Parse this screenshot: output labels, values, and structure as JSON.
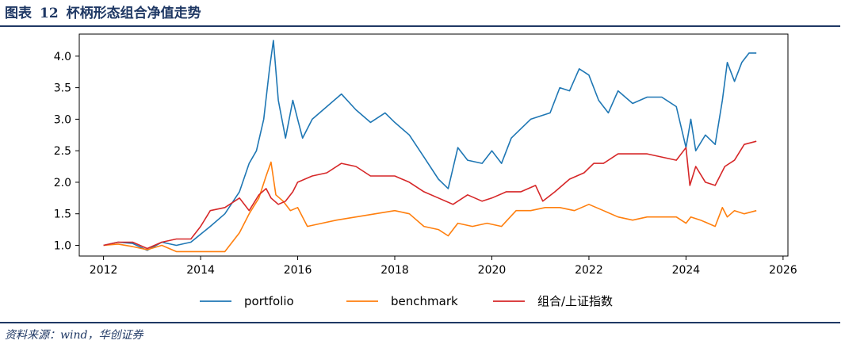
{
  "header": {
    "fig_label": "图表",
    "fig_number": "12",
    "fig_title": "杯柄形态组合净值走势"
  },
  "source": "资料来源：wind，华创证券",
  "chart_data": {
    "type": "line",
    "title": "",
    "xlabel": "",
    "ylabel": "",
    "xlim": [
      2011.5,
      2026.1
    ],
    "ylim": [
      0.83,
      4.35
    ],
    "xticks": [
      "2012",
      "2014",
      "2016",
      "2018",
      "2020",
      "2022",
      "2024",
      "2026"
    ],
    "yticks": [
      "1.0",
      "1.5",
      "2.0",
      "2.5",
      "3.0",
      "3.5",
      "4.0"
    ],
    "legend_position": "bottom",
    "series": [
      {
        "name": "portfolio",
        "color": "#1f77b4",
        "x": [
          2012.0,
          2012.3,
          2012.6,
          2012.9,
          2013.2,
          2013.5,
          2013.8,
          2014.2,
          2014.5,
          2014.8,
          2015.0,
          2015.15,
          2015.3,
          2015.42,
          2015.5,
          2015.6,
          2015.75,
          2015.9,
          2016.0,
          2016.1,
          2016.3,
          2016.6,
          2016.9,
          2017.2,
          2017.5,
          2017.8,
          2018.0,
          2018.3,
          2018.6,
          2018.9,
          2019.1,
          2019.3,
          2019.5,
          2019.8,
          2020.0,
          2020.2,
          2020.4,
          2020.6,
          2020.8,
          2021.0,
          2021.2,
          2021.4,
          2021.6,
          2021.8,
          2022.0,
          2022.2,
          2022.4,
          2022.6,
          2022.9,
          2023.2,
          2023.5,
          2023.8,
          2024.0,
          2024.1,
          2024.2,
          2024.4,
          2024.6,
          2024.75,
          2024.85,
          2025.0,
          2025.15,
          2025.3,
          2025.45
        ],
        "values": [
          1.0,
          1.05,
          1.03,
          0.92,
          1.05,
          1.0,
          1.05,
          1.3,
          1.5,
          1.85,
          2.3,
          2.5,
          3.0,
          3.8,
          4.25,
          3.3,
          2.7,
          3.3,
          3.0,
          2.7,
          3.0,
          3.2,
          3.4,
          3.15,
          2.95,
          3.1,
          2.95,
          2.75,
          2.4,
          2.05,
          1.9,
          2.55,
          2.35,
          2.3,
          2.5,
          2.3,
          2.7,
          2.85,
          3.0,
          3.05,
          3.1,
          3.5,
          3.45,
          3.8,
          3.7,
          3.3,
          3.1,
          3.45,
          3.25,
          3.35,
          3.35,
          3.2,
          2.55,
          3.0,
          2.5,
          2.75,
          2.6,
          3.3,
          3.9,
          3.6,
          3.9,
          4.05,
          4.05
        ]
      },
      {
        "name": "benchmark",
        "color": "#ff7f0e",
        "x": [
          2012.0,
          2012.3,
          2012.6,
          2012.9,
          2013.2,
          2013.5,
          2013.8,
          2014.2,
          2014.5,
          2014.8,
          2015.0,
          2015.2,
          2015.35,
          2015.45,
          2015.55,
          2015.7,
          2015.85,
          2016.0,
          2016.2,
          2016.5,
          2016.8,
          2017.2,
          2017.6,
          2018.0,
          2018.3,
          2018.6,
          2018.9,
          2019.1,
          2019.3,
          2019.6,
          2019.9,
          2020.2,
          2020.5,
          2020.8,
          2021.1,
          2021.4,
          2021.7,
          2022.0,
          2022.3,
          2022.6,
          2022.9,
          2023.2,
          2023.5,
          2023.8,
          2024.0,
          2024.1,
          2024.3,
          2024.6,
          2024.75,
          2024.85,
          2025.0,
          2025.2,
          2025.45
        ],
        "values": [
          1.0,
          1.02,
          0.98,
          0.93,
          1.0,
          0.9,
          0.9,
          0.9,
          0.9,
          1.2,
          1.5,
          1.75,
          2.1,
          2.32,
          1.8,
          1.7,
          1.55,
          1.6,
          1.3,
          1.35,
          1.4,
          1.45,
          1.5,
          1.55,
          1.5,
          1.3,
          1.25,
          1.15,
          1.35,
          1.3,
          1.35,
          1.3,
          1.55,
          1.55,
          1.6,
          1.6,
          1.55,
          1.65,
          1.55,
          1.45,
          1.4,
          1.45,
          1.45,
          1.45,
          1.35,
          1.45,
          1.4,
          1.3,
          1.6,
          1.45,
          1.55,
          1.5,
          1.55
        ]
      },
      {
        "name": "组合/上证指数",
        "color": "#d62728",
        "x": [
          2012.0,
          2012.3,
          2012.6,
          2012.9,
          2013.2,
          2013.5,
          2013.8,
          2014.0,
          2014.2,
          2014.5,
          2014.8,
          2015.0,
          2015.2,
          2015.35,
          2015.45,
          2015.6,
          2015.75,
          2015.9,
          2016.0,
          2016.3,
          2016.6,
          2016.9,
          2017.2,
          2017.5,
          2017.8,
          2018.0,
          2018.3,
          2018.6,
          2018.9,
          2019.2,
          2019.5,
          2019.8,
          2020.0,
          2020.3,
          2020.6,
          2020.9,
          2021.05,
          2021.3,
          2021.6,
          2021.9,
          2022.1,
          2022.3,
          2022.6,
          2022.9,
          2023.2,
          2023.5,
          2023.8,
          2024.0,
          2024.08,
          2024.2,
          2024.4,
          2024.6,
          2024.8,
          2025.0,
          2025.2,
          2025.45
        ],
        "values": [
          1.0,
          1.05,
          1.05,
          0.95,
          1.05,
          1.1,
          1.1,
          1.3,
          1.55,
          1.6,
          1.75,
          1.55,
          1.8,
          1.9,
          1.75,
          1.65,
          1.7,
          1.85,
          2.0,
          2.1,
          2.15,
          2.3,
          2.25,
          2.1,
          2.1,
          2.1,
          2.0,
          1.85,
          1.75,
          1.65,
          1.8,
          1.7,
          1.75,
          1.85,
          1.85,
          1.95,
          1.7,
          1.85,
          2.05,
          2.15,
          2.3,
          2.3,
          2.45,
          2.45,
          2.45,
          2.4,
          2.35,
          2.55,
          1.95,
          2.25,
          2.0,
          1.95,
          2.25,
          2.35,
          2.6,
          2.65
        ]
      }
    ]
  }
}
